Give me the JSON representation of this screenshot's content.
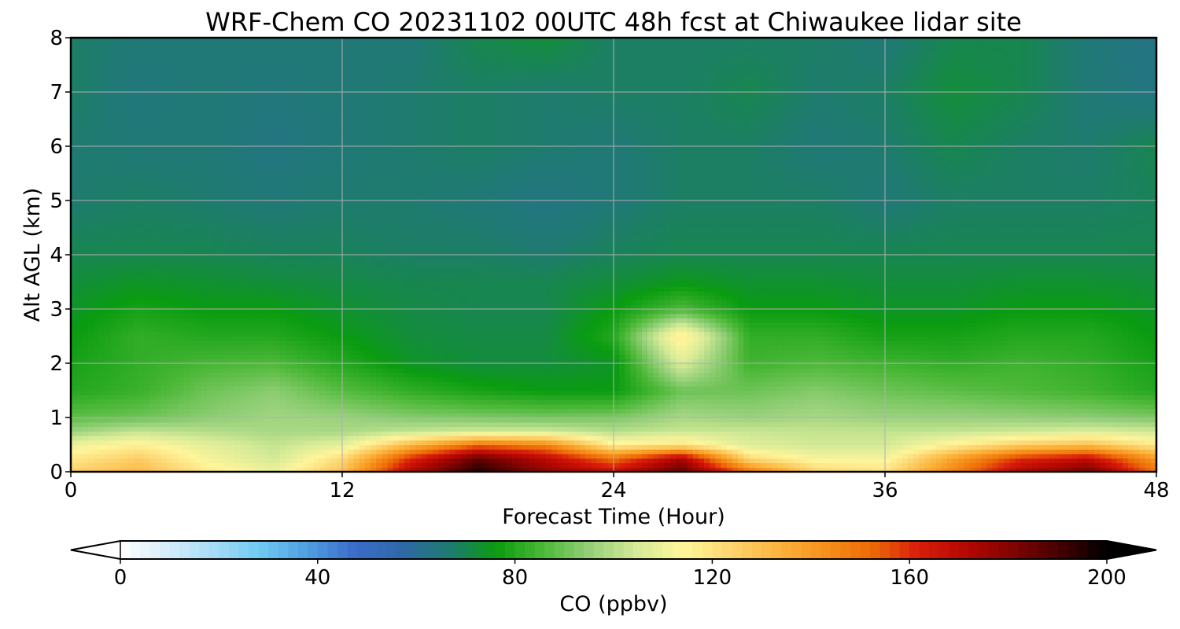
{
  "chart_data": {
    "type": "heatmap",
    "title": "WRF-Chem CO  20231102 00UTC 48h fcst at Chiwaukee lidar site",
    "xlabel": "Forecast Time (Hour)",
    "ylabel": "Alt AGL (km)",
    "xlim": [
      0,
      48
    ],
    "ylim": [
      0,
      8
    ],
    "xticks": [
      0,
      12,
      24,
      36,
      48
    ],
    "yticks": [
      0,
      1,
      2,
      3,
      4,
      5,
      6,
      7,
      8
    ],
    "grid": true,
    "colorbar": {
      "label": "CO  (ppbv)",
      "range": [
        0,
        200
      ],
      "ticks": [
        0,
        40,
        80,
        120,
        160,
        200
      ],
      "extend": "both",
      "colors": [
        "#ffffff",
        "#d6ecfa",
        "#a6dcf7",
        "#6ec9f2",
        "#4f9de0",
        "#3c6cc8",
        "#2f68a8",
        "#1f7a72",
        "#0a9c10",
        "#4cb838",
        "#96d07a",
        "#d7eb98",
        "#fff59a",
        "#fdd470",
        "#fcb43c",
        "#f7901c",
        "#ec6a06",
        "#d81c0c",
        "#b40800",
        "#800400",
        "#440000",
        "#000000"
      ]
    },
    "x": [
      0,
      3,
      6,
      9,
      12,
      15,
      18,
      21,
      24,
      27,
      30,
      33,
      36,
      39,
      42,
      45,
      48
    ],
    "y": [
      0,
      0.25,
      0.5,
      0.75,
      1,
      1.5,
      2,
      2.5,
      3,
      3.5,
      4,
      5,
      6,
      7,
      8
    ],
    "values": [
      [
        125,
        132,
        118,
        110,
        130,
        172,
        196,
        178,
        168,
        186,
        150,
        124,
        120,
        146,
        172,
        184,
        150
      ],
      [
        118,
        126,
        112,
        104,
        122,
        160,
        186,
        170,
        150,
        174,
        122,
        112,
        112,
        138,
        160,
        168,
        140
      ],
      [
        110,
        116,
        108,
        102,
        108,
        132,
        152,
        146,
        116,
        120,
        106,
        104,
        104,
        116,
        126,
        130,
        118
      ],
      [
        96,
        102,
        100,
        98,
        98,
        102,
        104,
        104,
        100,
        103,
        103,
        102,
        102,
        102,
        104,
        106,
        104
      ],
      [
        88,
        90,
        94,
        97,
        96,
        93,
        92,
        91,
        92,
        98,
        96,
        98,
        96,
        96,
        95,
        94,
        92
      ],
      [
        80,
        83,
        90,
        94,
        87,
        82,
        78,
        76,
        76,
        90,
        90,
        93,
        90,
        88,
        86,
        84,
        80
      ],
      [
        78,
        82,
        85,
        86,
        80,
        74,
        72,
        72,
        74,
        106,
        84,
        86,
        84,
        82,
        84,
        82,
        78
      ],
      [
        76,
        82,
        80,
        80,
        76,
        72,
        71,
        71,
        80,
        118,
        82,
        82,
        78,
        78,
        80,
        80,
        76
      ],
      [
        74,
        78,
        76,
        76,
        73,
        71,
        70,
        70,
        76,
        86,
        76,
        76,
        74,
        74,
        76,
        76,
        74
      ],
      [
        72,
        74,
        73,
        72,
        71,
        70,
        70,
        70,
        72,
        75,
        73,
        73,
        72,
        72,
        73,
        73,
        72
      ],
      [
        70,
        70,
        70,
        69,
        69,
        68,
        68,
        67,
        69,
        70,
        70,
        70,
        70,
        70,
        70,
        70,
        70
      ],
      [
        67,
        68,
        67,
        66,
        67,
        67,
        66,
        64,
        66,
        68,
        68,
        68,
        66,
        68,
        68,
        68,
        69
      ],
      [
        67,
        66,
        66,
        64,
        66,
        67,
        68,
        67,
        66,
        68,
        68,
        66,
        67,
        70,
        68,
        67,
        70
      ],
      [
        68,
        65,
        66,
        65,
        66,
        67,
        68,
        67,
        68,
        68,
        70,
        67,
        68,
        72,
        70,
        66,
        64
      ],
      [
        68,
        66,
        66,
        66,
        66,
        66,
        70,
        72,
        68,
        68,
        68,
        68,
        66,
        70,
        70,
        66,
        63
      ]
    ]
  }
}
